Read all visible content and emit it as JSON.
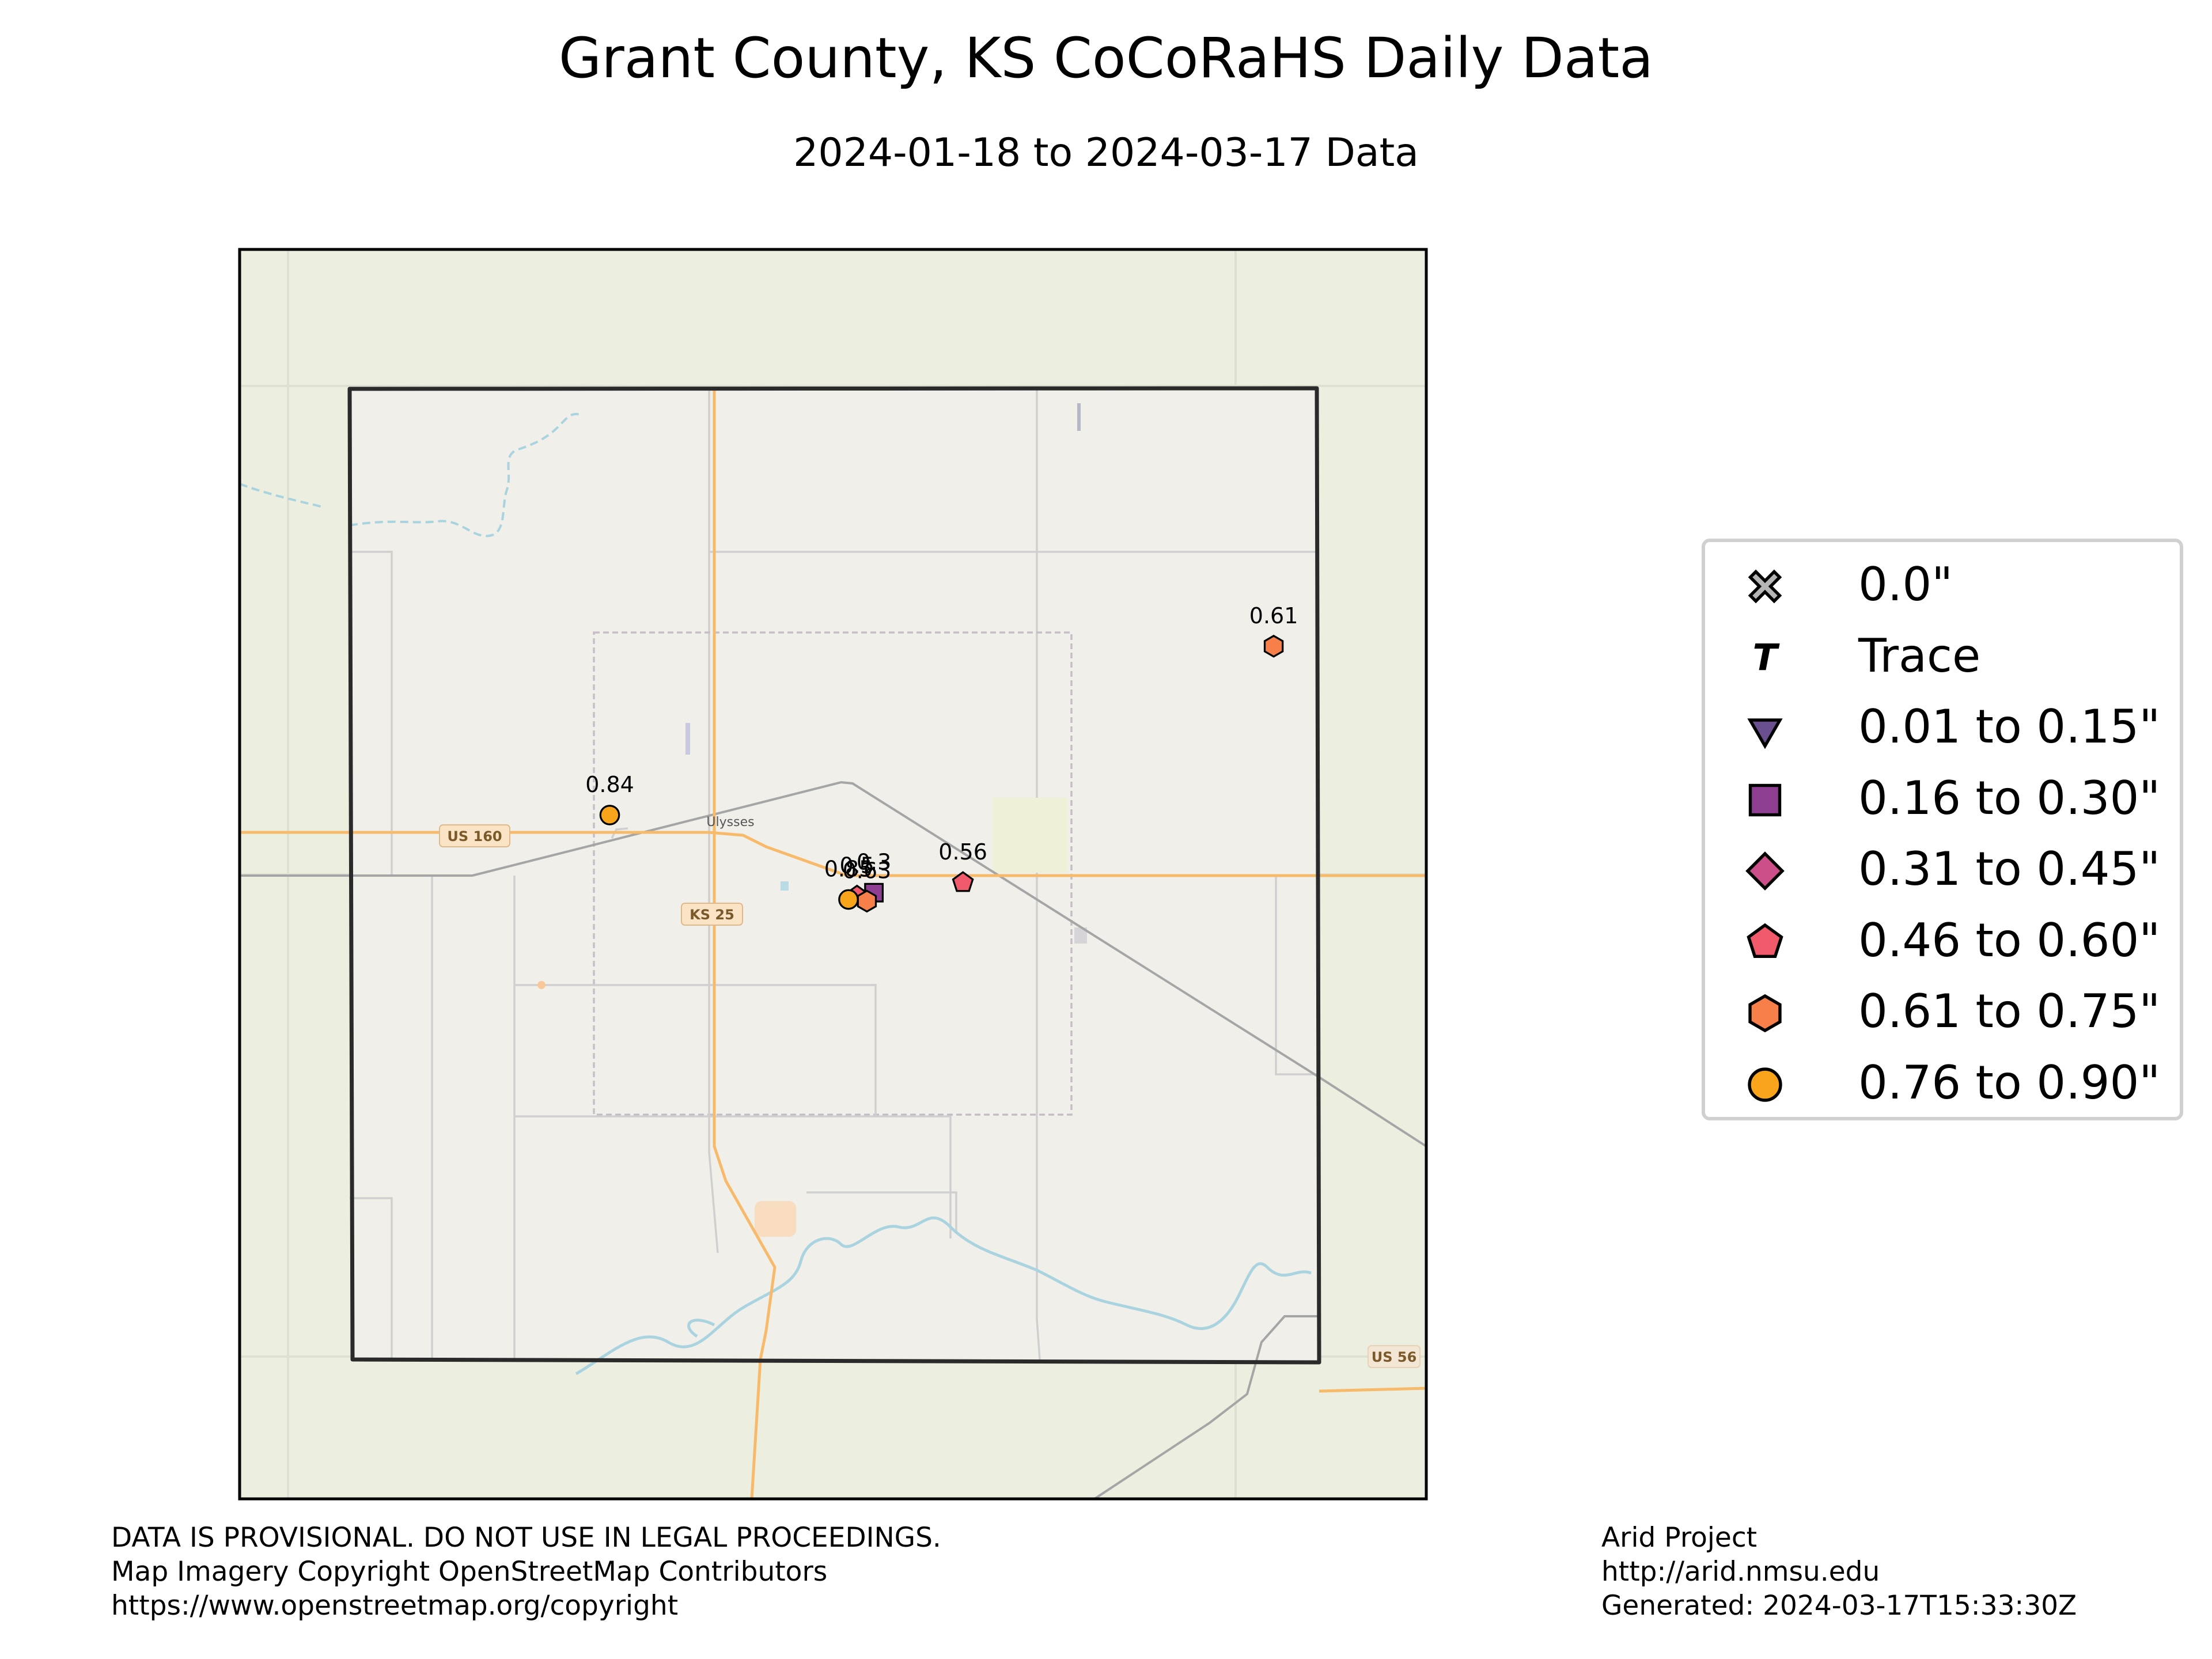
{
  "title": "Grant County, KS CoCoRaHS Daily Data",
  "subtitle": "2024-01-18 to 2024-03-17 Data",
  "map": {
    "road_labels": [
      "US 160",
      "KS 25",
      "US 56"
    ],
    "town_label": "Ulysses",
    "colors": {
      "outer_land": "#eceedf",
      "county_land": "#f1efea",
      "county_border": "#2a2a2a",
      "highway": "#f7b96a",
      "river": "#a9d3df",
      "rail": "#a5a5a5",
      "minor_road": "#c9c9c9"
    }
  },
  "observations": [
    {
      "label": "0.84",
      "value": 0.84,
      "category": "0.76 to 0.90\"",
      "lat": 37.62,
      "lon": -101.55
    },
    {
      "label": "0.61",
      "value": 0.61,
      "category": "0.61 to 0.75\"",
      "lat": 37.72,
      "lon": -101.08
    },
    {
      "label": "0.56",
      "value": 0.56,
      "category": "0.46 to 0.60\"",
      "lat": 37.58,
      "lon": -101.3
    },
    {
      "label": "0.3",
      "value": 0.3,
      "category": "0.16 to 0.30\"",
      "lat": 37.574,
      "lon": -101.363
    },
    {
      "label": "0.5",
      "value": 0.5,
      "category": "0.46 to 0.60\"",
      "lat": 37.572,
      "lon": -101.375
    },
    {
      "label": "0.63",
      "value": 0.63,
      "category": "0.61 to 0.75\"",
      "lat": 37.569,
      "lon": -101.368
    },
    {
      "label": "0.85",
      "value": 0.85,
      "category": "0.76 to 0.90\"",
      "lat": 37.57,
      "lon": -101.381
    }
  ],
  "legend": {
    "items": [
      {
        "label": "0.0\"",
        "marker": "x-cross",
        "color": "#b5b5b5"
      },
      {
        "label": "Trace",
        "marker": "t-letter",
        "color": "#000000"
      },
      {
        "label": "0.01 to 0.15\"",
        "marker": "triangle-down",
        "color": "#6a4f8f"
      },
      {
        "label": "0.16 to 0.30\"",
        "marker": "square",
        "color": "#8e3f91"
      },
      {
        "label": "0.31 to 0.45\"",
        "marker": "diamond",
        "color": "#cc4f8a"
      },
      {
        "label": "0.46 to 0.60\"",
        "marker": "pentagon",
        "color": "#f05a6a"
      },
      {
        "label": "0.61 to 0.75\"",
        "marker": "hexagon",
        "color": "#f77f4a"
      },
      {
        "label": "0.76 to 0.90\"",
        "marker": "circle",
        "color": "#f8a51c"
      }
    ]
  },
  "footer": {
    "left": [
      "DATA IS PROVISIONAL. DO NOT USE IN LEGAL PROCEEDINGS.",
      "Map Imagery Copyright OpenStreetMap Contributors",
      "https://www.openstreetmap.org/copyright"
    ],
    "right": [
      "Arid Project",
      "http://arid.nmsu.edu",
      "Generated: 2024-03-17T15:33:30Z"
    ]
  }
}
